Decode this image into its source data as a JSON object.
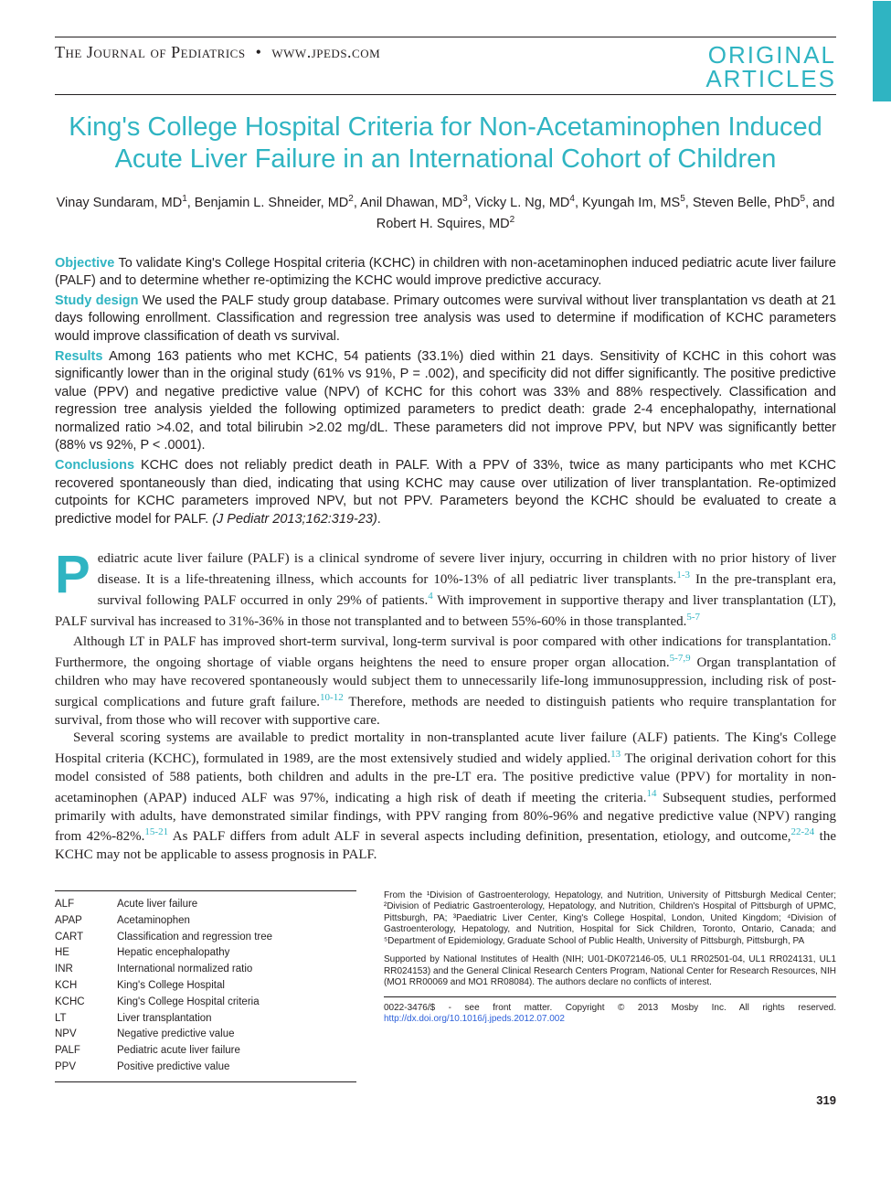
{
  "header": {
    "journal": "The Journal of Pediatrics",
    "site": "www.jpeds.com",
    "section_line1": "ORIGINAL",
    "section_line2": "ARTICLES",
    "badge_color": "#2fb4c2"
  },
  "title": "King's College Hospital Criteria for Non-Acetaminophen Induced Acute Liver Failure in an International Cohort of Children",
  "authors_html": "Vinay Sundaram, MD<sup>1</sup>, Benjamin L. Shneider, MD<sup>2</sup>, Anil Dhawan, MD<sup>3</sup>, Vicky L. Ng, MD<sup>4</sup>, Kyungah Im, MS<sup>5</sup>, Steven Belle, PhD<sup>5</sup>, and Robert H. Squires, MD<sup>2</sup>",
  "abstract": {
    "objective": "To validate King's College Hospital criteria (KCHC) in children with non-acetaminophen induced pediatric acute liver failure (PALF) and to determine whether re-optimizing the KCHC would improve predictive accuracy.",
    "study_design": "We used the PALF study group database. Primary outcomes were survival without liver transplantation vs death at 21 days following enrollment. Classification and regression tree analysis was used to determine if modification of KCHC parameters would improve classification of death vs survival.",
    "results": "Among 163 patients who met KCHC, 54 patients (33.1%) died within 21 days. Sensitivity of KCHC in this cohort was significantly lower than in the original study (61% vs 91%, P = .002), and specificity did not differ significantly. The positive predictive value (PPV) and negative predictive value (NPV) of KCHC for this cohort was 33% and 88% respectively. Classification and regression tree analysis yielded the following optimized parameters to predict death: grade 2-4 encephalopathy, international normalized ratio >4.02, and total bilirubin >2.02 mg/dL. These parameters did not improve PPV, but NPV was significantly better (88% vs 92%, P < .0001).",
    "conclusions": "KCHC does not reliably predict death in PALF. With a PPV of 33%, twice as many participants who met KCHC recovered spontaneously than died, indicating that using KCHC may cause over utilization of liver transplantation. Re-optimized cutpoints for KCHC parameters improved NPV, but not PPV. Parameters beyond the KCHC should be evaluated to create a predictive model for PALF.",
    "citation": "(J Pediatr 2013;162:319-23)"
  },
  "body": {
    "p1_a": "ediatric acute liver failure (PALF) is a clinical syndrome of severe liver injury, occurring in children with no prior history of liver disease. It is a life-threatening illness, which accounts for 10%-13% of all pediatric liver transplants.",
    "p1_ref1": "1-3",
    "p1_b": " In the pre-transplant era, survival following PALF occurred in only 29% of patients.",
    "p1_ref2": "4",
    "p1_c": " With improvement in supportive therapy and liver transplantation (LT), PALF survival has increased to 31%-36% in those not transplanted and to between 55%-60% in those transplanted.",
    "p1_ref3": "5-7",
    "p2_a": "Although LT in PALF has improved short-term survival, long-term survival is poor compared with other indications for transplantation.",
    "p2_ref1": "8",
    "p2_b": " Furthermore, the ongoing shortage of viable organs heightens the need to ensure proper organ allocation.",
    "p2_ref2": "5-7,9",
    "p2_c": " Organ transplantation of children who may have recovered spontaneously would subject them to unnecessarily life-long immunosuppression, including risk of post-surgical complications and future graft failure.",
    "p2_ref3": "10-12",
    "p2_d": " Therefore, methods are needed to distinguish patients who require transplantation for survival, from those who will recover with supportive care.",
    "p3_a": "Several scoring systems are available to predict mortality in non-transplanted acute liver failure (ALF) patients. The King's College Hospital criteria (KCHC), formulated in 1989, are the most extensively studied and widely applied.",
    "p3_ref1": "13",
    "p3_b": " The original derivation cohort for this model consisted of 588 patients, both children and adults in the pre-LT era. The positive predictive value (PPV) for mortality in non- acetaminophen (APAP) induced ALF was 97%, indicating a high risk of death if meeting the criteria.",
    "p3_ref2": "14",
    "p3_c": " Subsequent studies, performed primarily with adults, have demonstrated similar findings, with PPV ranging from 80%-96% and negative predictive value (NPV) ranging from 42%-82%.",
    "p3_ref3": "15-21",
    "p3_d": " As PALF differs from adult ALF in several aspects including definition, presentation, etiology, and outcome,",
    "p3_ref4": "22-24",
    "p3_e": " the KCHC may not be applicable to assess prognosis in PALF."
  },
  "abbreviations": [
    {
      "abbr": "ALF",
      "full": "Acute liver failure"
    },
    {
      "abbr": "APAP",
      "full": "Acetaminophen"
    },
    {
      "abbr": "CART",
      "full": "Classification and regression tree"
    },
    {
      "abbr": "HE",
      "full": "Hepatic encephalopathy"
    },
    {
      "abbr": "INR",
      "full": "International normalized ratio"
    },
    {
      "abbr": "KCH",
      "full": "King's College Hospital"
    },
    {
      "abbr": "KCHC",
      "full": "King's College Hospital criteria"
    },
    {
      "abbr": "LT",
      "full": "Liver transplantation"
    },
    {
      "abbr": "NPV",
      "full": "Negative predictive value"
    },
    {
      "abbr": "PALF",
      "full": "Pediatric acute liver failure"
    },
    {
      "abbr": "PPV",
      "full": "Positive predictive value"
    }
  ],
  "affiliations": {
    "from": "From the ¹Division of Gastroenterology, Hepatology, and Nutrition, University of Pittsburgh Medical Center; ²Division of Pediatric Gastroenterology, Hepatology, and Nutrition, Children's Hospital of Pittsburgh of UPMC, Pittsburgh, PA; ³Paediatric Liver Center, King's College Hospital, London, United Kingdom; ⁴Division of Gastroenterology, Hepatology, and Nutrition, Hospital for Sick Children, Toronto, Ontario, Canada; and ⁵Department of Epidemiology, Graduate School of Public Health, University of Pittsburgh, Pittsburgh, PA",
    "support": "Supported by National Institutes of Health (NIH; U01-DK072146-05, UL1 RR02501-04, UL1 RR024131, UL1 RR024153) and the General Clinical Research Centers Program, National Center for Research Resources, NIH (MO1 RR00069 and MO1 RR08084). The authors declare no conflicts of interest.",
    "copyright": "0022-3476/$ - see front matter. Copyright © 2013 Mosby Inc. All rights reserved.",
    "doi": "http://dx.doi.org/10.1016/j.jpeds.2012.07.002"
  },
  "page_number": "319",
  "colors": {
    "accent": "#2fb4c2",
    "text": "#231f20",
    "link": "#2b5fd9"
  }
}
